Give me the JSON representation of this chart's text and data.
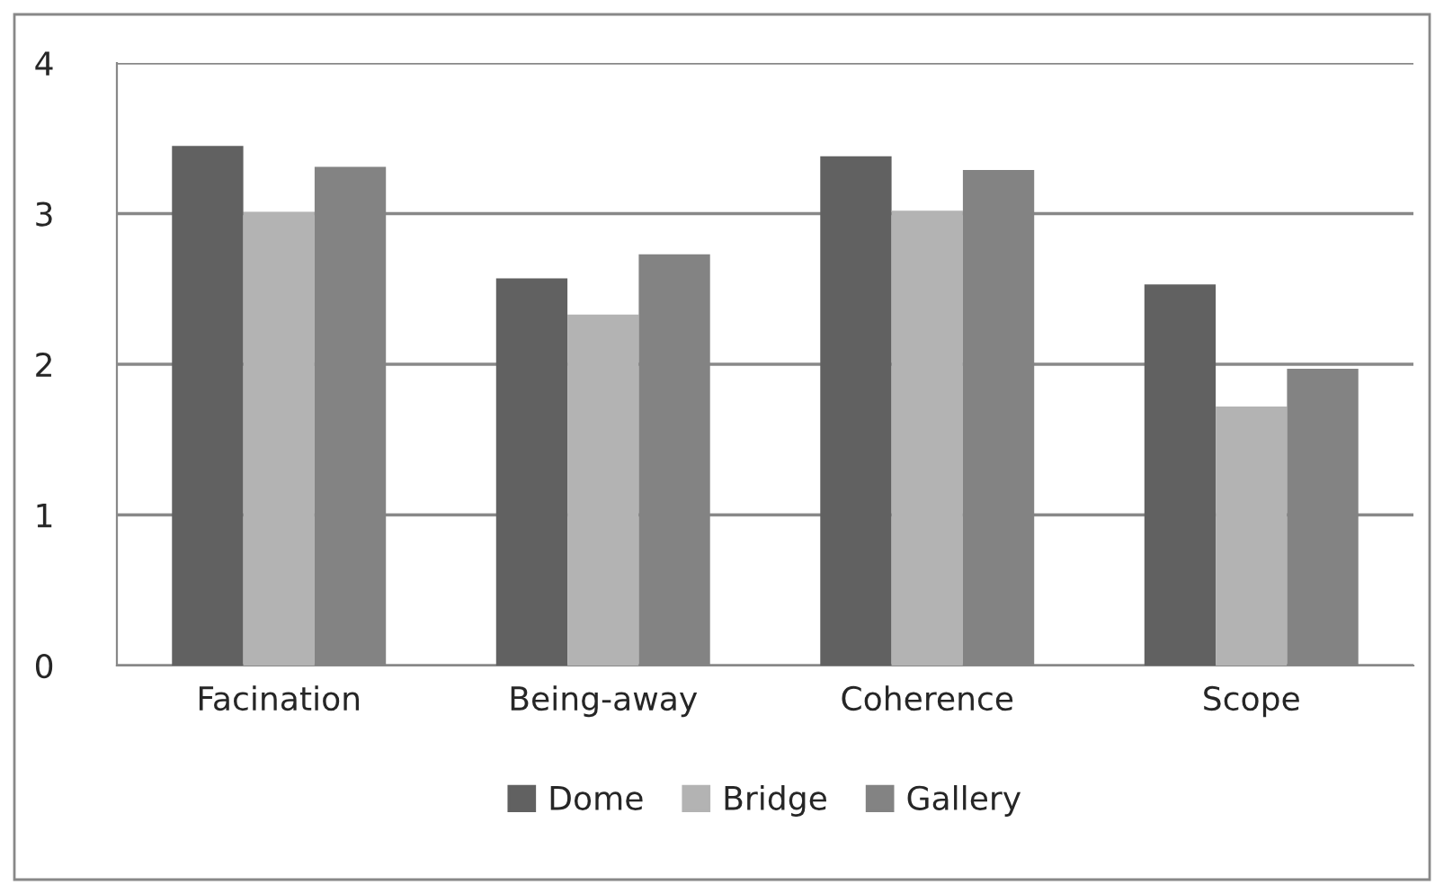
{
  "chart_data": {
    "type": "bar",
    "categories": [
      "Facination",
      "Being-away",
      "Coherence",
      "Scope"
    ],
    "series": [
      {
        "name": "Dome",
        "color": "#616161",
        "values": [
          3.45,
          2.57,
          3.38,
          2.53
        ]
      },
      {
        "name": "Bridge",
        "color": "#b3b3b3",
        "values": [
          3.01,
          2.33,
          3.02,
          1.72
        ]
      },
      {
        "name": "Gallery",
        "color": "#838383",
        "values": [
          3.31,
          2.73,
          3.29,
          1.97
        ]
      }
    ],
    "ylim": [
      0,
      4
    ],
    "yticks": [
      0,
      1,
      2,
      3,
      4
    ],
    "grid": "y",
    "legend": "bottom"
  }
}
